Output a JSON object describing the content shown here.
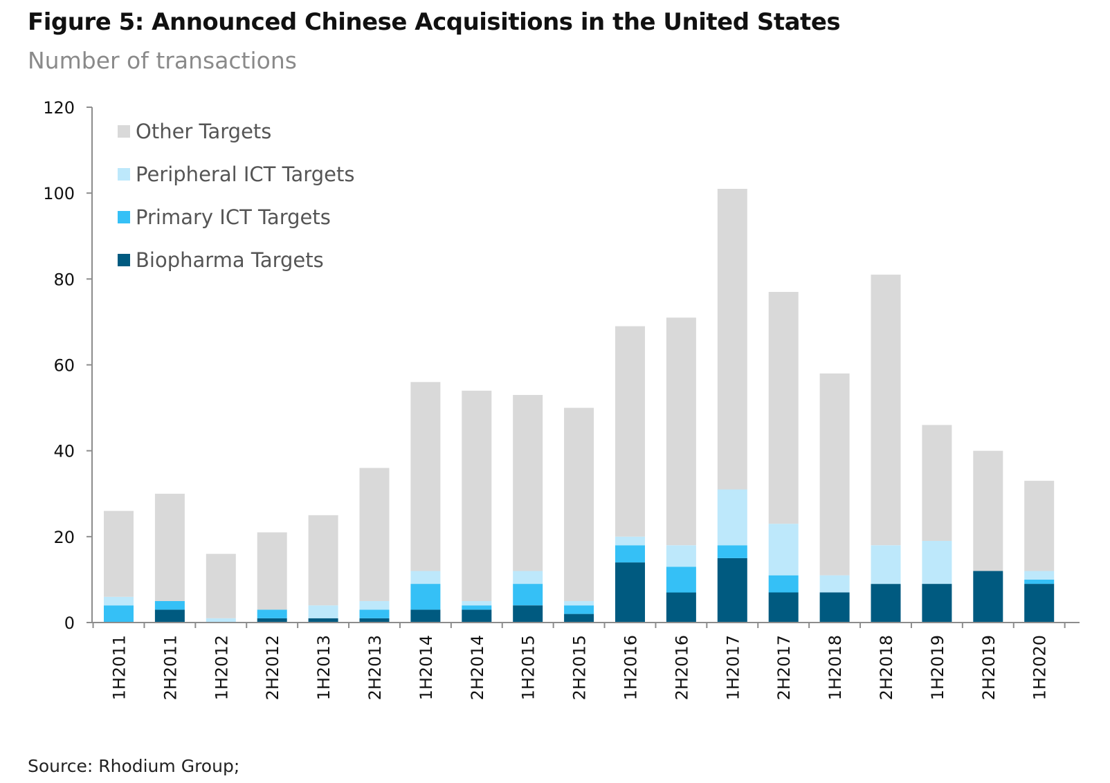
{
  "title": "Figure 5: Announced Chinese Acquisitions in the United States",
  "subtitle": "Number of transactions",
  "source": "Source: Rhodium Group;",
  "colors": {
    "other": "#d9d9d9",
    "peripheral_ict": "#bde8fb",
    "primary_ict": "#35c0f6",
    "biopharma": "#005a80",
    "axis": "#8c8c8c"
  },
  "chart_data": {
    "type": "bar",
    "stacked": true,
    "title": "Figure 5: Announced Chinese Acquisitions in the United States",
    "subtitle": "Number of transactions",
    "xlabel": "",
    "ylabel": "",
    "ylim": [
      0,
      120
    ],
    "yticks": [
      0,
      20,
      40,
      60,
      80,
      100,
      120
    ],
    "grid": false,
    "legend_position": "top-left",
    "categories": [
      "1H2011",
      "2H2011",
      "1H2012",
      "2H2012",
      "1H2013",
      "2H2013",
      "1H2014",
      "2H2014",
      "1H2015",
      "2H2015",
      "1H2016",
      "2H2016",
      "1H2017",
      "2H2017",
      "1H2018",
      "2H2018",
      "1H2019",
      "2H2019",
      "1H2020"
    ],
    "series": [
      {
        "name": "Biopharma Targets",
        "color": "#005a80",
        "values": [
          0,
          3,
          0,
          1,
          1,
          1,
          3,
          3,
          4,
          2,
          14,
          7,
          15,
          7,
          7,
          9,
          9,
          12,
          9
        ]
      },
      {
        "name": "Primary ICT Targets",
        "color": "#35c0f6",
        "values": [
          4,
          2,
          0,
          2,
          0,
          2,
          6,
          1,
          5,
          2,
          4,
          6,
          3,
          4,
          0,
          0,
          0,
          0,
          1
        ]
      },
      {
        "name": "Peripheral ICT Targets",
        "color": "#bde8fb",
        "values": [
          2,
          0,
          1,
          0,
          3,
          2,
          3,
          1,
          3,
          1,
          2,
          5,
          13,
          12,
          4,
          9,
          10,
          0,
          2
        ]
      },
      {
        "name": "Other Targets",
        "color": "#d9d9d9",
        "values": [
          20,
          25,
          15,
          18,
          21,
          31,
          44,
          49,
          41,
          45,
          49,
          53,
          70,
          54,
          47,
          63,
          27,
          28,
          21
        ]
      }
    ],
    "legend_order": [
      "Other Targets",
      "Peripheral ICT Targets",
      "Primary ICT Targets",
      "Biopharma Targets"
    ]
  }
}
